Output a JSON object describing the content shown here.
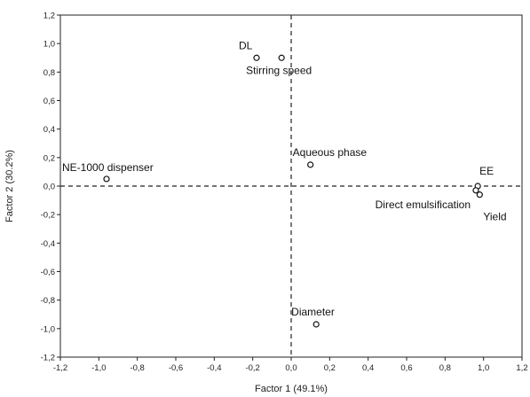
{
  "chart_data": {
    "type": "scatter",
    "title": "",
    "xlabel": "Factor 1 (49.1%)",
    "ylabel": "Factor 2 (30.2%)",
    "xlim": [
      -1.2,
      1.2
    ],
    "ylim": [
      -1.2,
      1.2
    ],
    "xticks": [
      "-1,2",
      "-1,0",
      "-0,8",
      "-0,6",
      "-0,4",
      "-0,2",
      "0,0",
      "0,2",
      "0,4",
      "0,6",
      "0,8",
      "1,0",
      "1,2"
    ],
    "yticks": [
      "1,2",
      "1,0",
      "0,8",
      "0,6",
      "0,4",
      "0,2",
      "0,0",
      "-0,2",
      "-0,4",
      "-0,6",
      "-0,8",
      "-1,0",
      "-1,2"
    ],
    "grid": false,
    "reference_lines": {
      "x": 0,
      "y": 0,
      "style": "dashed"
    },
    "points": [
      {
        "label": "DL",
        "x": -0.18,
        "y": 0.9
      },
      {
        "label": "Stirring speed",
        "x": -0.05,
        "y": 0.9
      },
      {
        "label": "Aqueous phase",
        "x": 0.1,
        "y": 0.15
      },
      {
        "label": "NE-1000 dispenser",
        "x": -0.96,
        "y": 0.05
      },
      {
        "label": "EE",
        "x": 0.97,
        "y": 0.0
      },
      {
        "label": "Direct emulsification",
        "x": 0.96,
        "y": -0.03
      },
      {
        "label": "Yield",
        "x": 0.98,
        "y": -0.06
      },
      {
        "label": "Diameter",
        "x": 0.13,
        "y": -0.97
      }
    ]
  }
}
